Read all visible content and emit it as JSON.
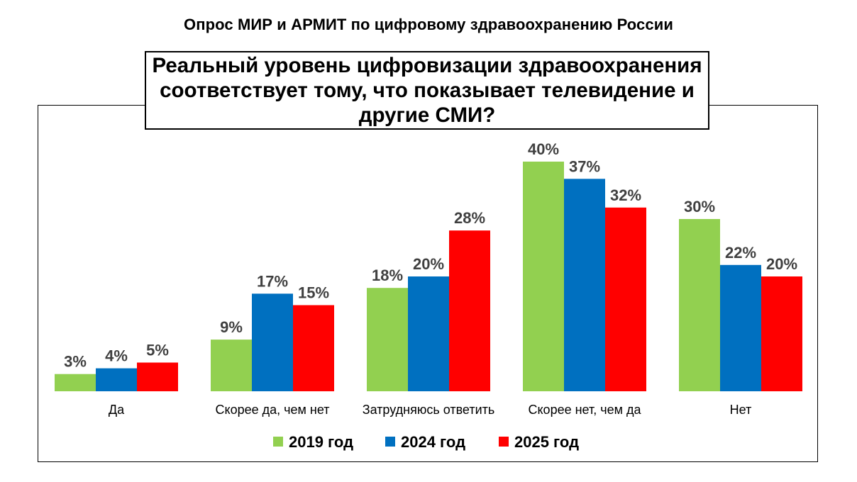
{
  "survey_title": "Опрос  МИР и АРМИТ по цифровому здравоохранению России",
  "question": "Реальный уровень цифровизации здравоохранения соответствует тому, что показывает телевидение и другие СМИ?",
  "chart_data": {
    "type": "bar",
    "title": "Реальный уровень цифровизации здравоохранения соответствует тому, что показывает телевидение и другие СМИ?",
    "categories": [
      "Да",
      "Скорее да, чем нет",
      "Затрудняюсь ответить",
      "Скорее нет, чем да",
      "Нет"
    ],
    "series": [
      {
        "name": "2019 год",
        "color": "#92D050",
        "values": [
          3,
          9,
          18,
          40,
          30
        ]
      },
      {
        "name": "2024 год",
        "color": "#0070C0",
        "values": [
          4,
          17,
          20,
          37,
          22
        ]
      },
      {
        "name": "2025 год",
        "color": "#FF0000",
        "values": [
          5,
          15,
          28,
          32,
          20
        ]
      }
    ],
    "value_suffix": "%",
    "ylim": [
      0,
      40
    ],
    "grid": false,
    "legend_position": "bottom"
  }
}
